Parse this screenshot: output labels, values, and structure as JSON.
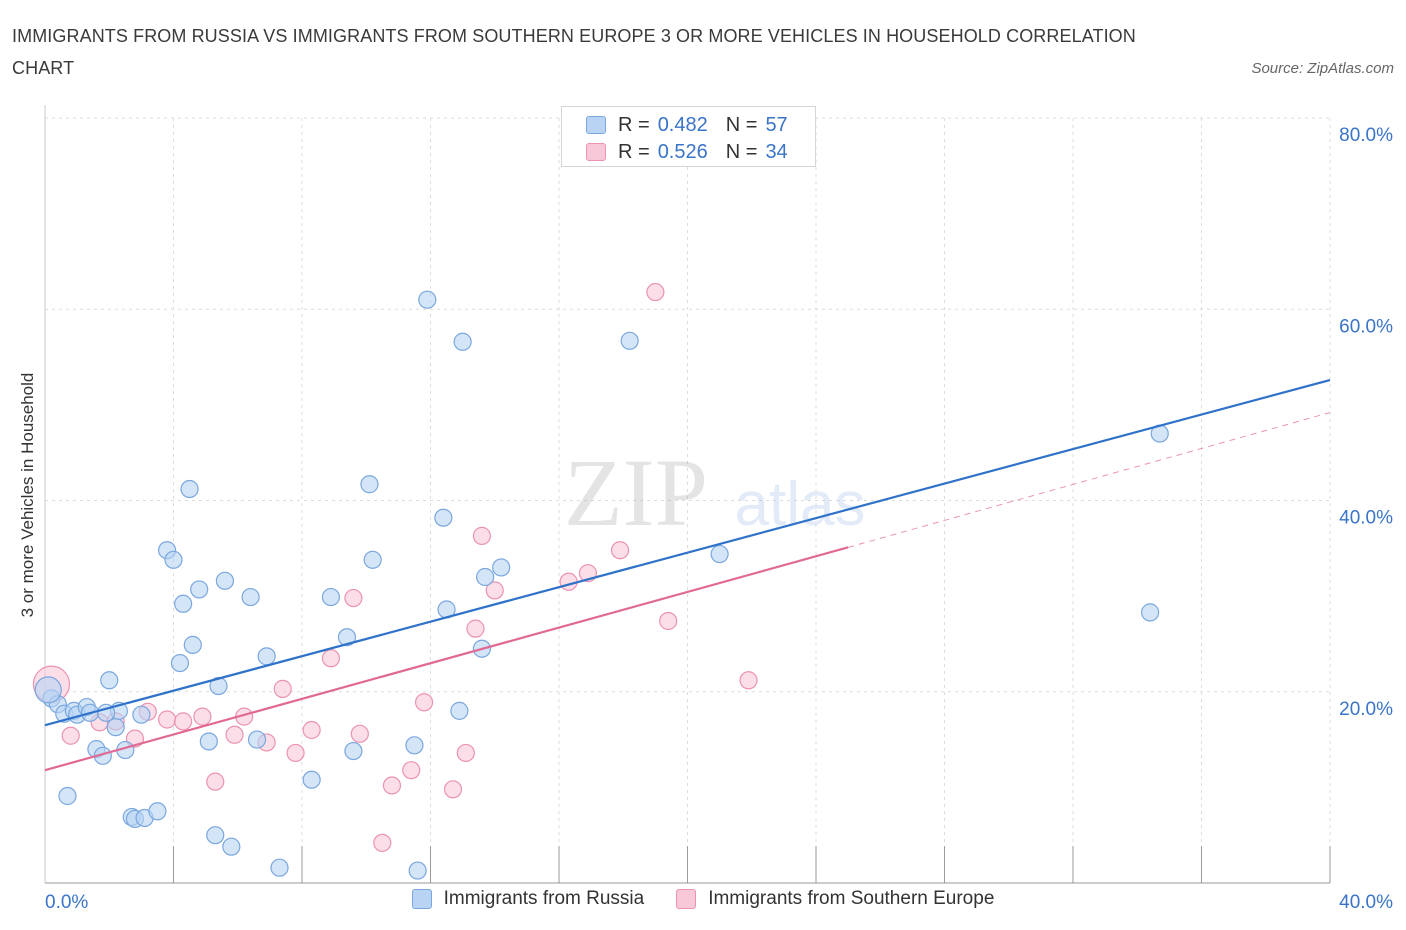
{
  "title": "IMMIGRANTS FROM RUSSIA VS IMMIGRANTS FROM SOUTHERN EUROPE 3 OR MORE VEHICLES IN HOUSEHOLD CORRELATION CHART",
  "source": "Source: ZipAtlas.com",
  "watermark": {
    "zip": "ZIP",
    "atlas": "atlas"
  },
  "legend_top": {
    "rows": [
      {
        "r_label": "R =",
        "r_value": "0.482",
        "n_label": "N =",
        "n_value": "57"
      },
      {
        "r_label": "R =",
        "r_value": "0.526",
        "n_label": "N =",
        "n_value": "34"
      }
    ]
  },
  "colors": {
    "russia_fill": "#b8d3f3",
    "russia_stroke": "#7aa7de",
    "russia_line": "#2f72c9",
    "south_fill": "#f8c8d8",
    "south_stroke": "#eb93b1",
    "south_line": "#e06a93",
    "tick_text": "#3a74c8",
    "grid": "#dcdcdc"
  },
  "chart_data": {
    "type": "scatter",
    "title": "IMMIGRANTS FROM RUSSIA VS IMMIGRANTS FROM SOUTHERN EUROPE 3 OR MORE VEHICLES IN HOUSEHOLD CORRELATION CHART",
    "xlabel": "",
    "ylabel": "3 or more Vehicles in Household",
    "xlim": [
      0,
      40
    ],
    "ylim": [
      0,
      80
    ],
    "x_tick_labels": [
      {
        "value": 0,
        "label": "0.0%"
      },
      {
        "value": 40,
        "label": "40.0%"
      }
    ],
    "y_tick_labels": [
      {
        "value": 20,
        "label": "20.0%"
      },
      {
        "value": 40,
        "label": "40.0%"
      },
      {
        "value": 60,
        "label": "60.0%"
      },
      {
        "value": 80,
        "label": "80.0%"
      }
    ],
    "series": [
      {
        "name": "Immigrants from Russia",
        "R": 0.482,
        "N": 57,
        "trend": {
          "x0": 0,
          "y0": 16.5,
          "x1": 40,
          "y1": 52.6
        },
        "points": [
          [
            0.2,
            19.3
          ],
          [
            0.4,
            18.7
          ],
          [
            0.6,
            17.7
          ],
          [
            0.7,
            9.1
          ],
          [
            0.9,
            18.0
          ],
          [
            1.0,
            17.6
          ],
          [
            1.3,
            18.4
          ],
          [
            1.4,
            17.8
          ],
          [
            1.6,
            14.0
          ],
          [
            1.8,
            13.3
          ],
          [
            2.0,
            21.2
          ],
          [
            2.2,
            16.3
          ],
          [
            2.3,
            18.0
          ],
          [
            2.5,
            13.9
          ],
          [
            2.7,
            6.9
          ],
          [
            2.8,
            6.7
          ],
          [
            3.1,
            6.8
          ],
          [
            3.0,
            17.6
          ],
          [
            3.5,
            7.5
          ],
          [
            3.8,
            34.8
          ],
          [
            4.0,
            33.8
          ],
          [
            4.2,
            23.0
          ],
          [
            4.3,
            29.2
          ],
          [
            4.5,
            41.2
          ],
          [
            4.6,
            24.9
          ],
          [
            4.8,
            30.7
          ],
          [
            5.1,
            14.8
          ],
          [
            5.3,
            5.0
          ],
          [
            5.4,
            20.6
          ],
          [
            5.6,
            31.6
          ],
          [
            5.8,
            3.8
          ],
          [
            6.4,
            29.9
          ],
          [
            6.6,
            15.0
          ],
          [
            6.9,
            23.7
          ],
          [
            7.3,
            1.6
          ],
          [
            8.3,
            10.8
          ],
          [
            8.9,
            29.9
          ],
          [
            9.4,
            25.7
          ],
          [
            9.6,
            13.8
          ],
          [
            10.1,
            41.7
          ],
          [
            10.2,
            33.8
          ],
          [
            11.5,
            14.4
          ],
          [
            11.6,
            1.3
          ],
          [
            11.9,
            61.0
          ],
          [
            12.4,
            38.2
          ],
          [
            12.5,
            28.6
          ],
          [
            12.9,
            18.0
          ],
          [
            13.0,
            56.6
          ],
          [
            13.6,
            24.5
          ],
          [
            13.7,
            32.0
          ],
          [
            14.2,
            33.0
          ],
          [
            18.2,
            56.7
          ],
          [
            21.0,
            34.4
          ],
          [
            34.4,
            28.3
          ],
          [
            34.7,
            47.0
          ],
          [
            0.1,
            20.2
          ],
          [
            1.9,
            17.8
          ]
        ]
      },
      {
        "name": "Immigrants from Southern Europe",
        "R": 0.526,
        "N": 34,
        "trend": {
          "x0": 0,
          "y0": 11.8,
          "x1": 25,
          "y1": 35.1,
          "dash_x1": 40,
          "dash_y1": 49.2
        },
        "points": [
          [
            0.2,
            20.8
          ],
          [
            0.8,
            15.4
          ],
          [
            1.7,
            16.8
          ],
          [
            2.2,
            16.9
          ],
          [
            2.8,
            15.1
          ],
          [
            3.2,
            17.9
          ],
          [
            3.8,
            17.1
          ],
          [
            4.3,
            16.9
          ],
          [
            4.9,
            17.4
          ],
          [
            5.3,
            10.6
          ],
          [
            5.9,
            15.5
          ],
          [
            6.2,
            17.4
          ],
          [
            6.9,
            14.7
          ],
          [
            7.4,
            20.3
          ],
          [
            7.8,
            13.6
          ],
          [
            8.3,
            16.0
          ],
          [
            8.9,
            23.5
          ],
          [
            9.6,
            29.8
          ],
          [
            9.8,
            15.6
          ],
          [
            10.8,
            10.2
          ],
          [
            11.4,
            11.8
          ],
          [
            11.8,
            18.9
          ],
          [
            12.7,
            9.8
          ],
          [
            13.1,
            13.6
          ],
          [
            13.4,
            26.6
          ],
          [
            13.6,
            36.3
          ],
          [
            14.0,
            30.6
          ],
          [
            16.3,
            31.5
          ],
          [
            16.9,
            32.4
          ],
          [
            17.9,
            34.8
          ],
          [
            19.0,
            61.8
          ],
          [
            19.4,
            27.4
          ],
          [
            21.9,
            21.2
          ],
          [
            10.5,
            4.2
          ]
        ]
      }
    ]
  }
}
